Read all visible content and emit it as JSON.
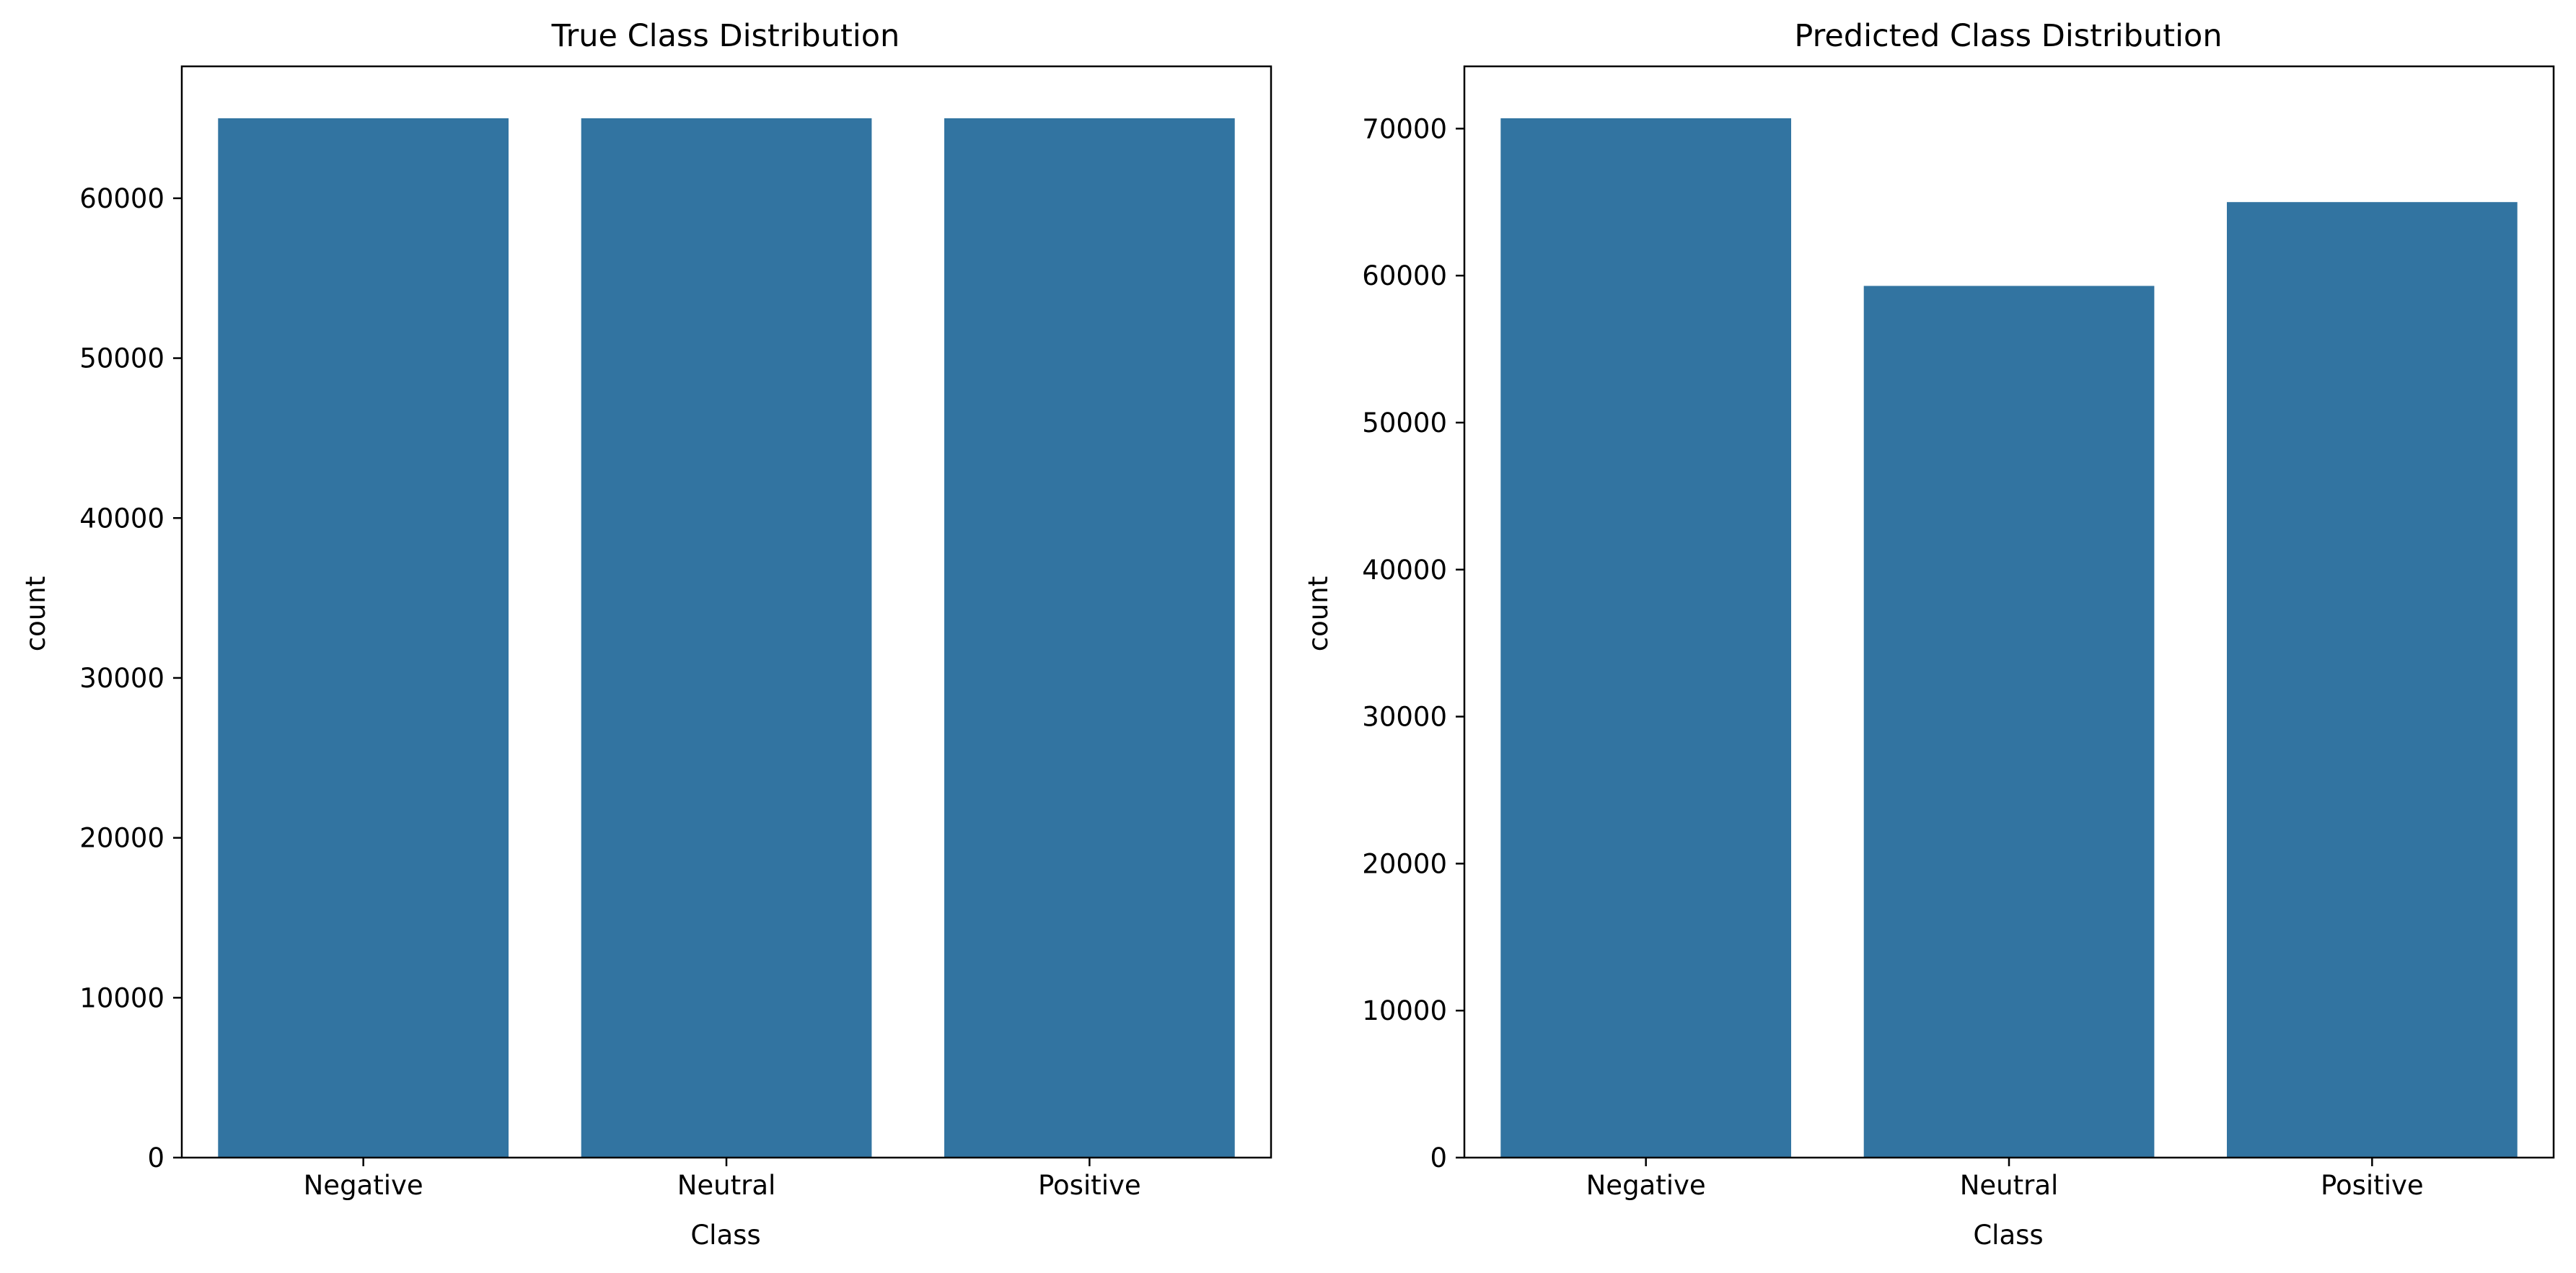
{
  "chart_data": [
    {
      "type": "bar",
      "title": "True Class Distribution",
      "xlabel": "Class",
      "ylabel": "count",
      "categories": [
        "Negative",
        "Neutral",
        "Positive"
      ],
      "values": [
        65000,
        65000,
        65000
      ],
      "ylim": [
        0,
        68250
      ],
      "yticks": [
        0,
        10000,
        20000,
        30000,
        40000,
        50000,
        60000
      ],
      "ytick_labels": [
        "0",
        "10000",
        "20000",
        "30000",
        "40000",
        "50000",
        "60000"
      ],
      "bar_color": "#3274a1",
      "grid": false,
      "legend": "none"
    },
    {
      "type": "bar",
      "title": "Predicted Class Distribution",
      "xlabel": "Class",
      "ylabel": "count",
      "categories": [
        "Negative",
        "Neutral",
        "Positive"
      ],
      "values": [
        70700,
        59300,
        65000
      ],
      "ylim": [
        0,
        74235
      ],
      "yticks": [
        0,
        10000,
        20000,
        30000,
        40000,
        50000,
        60000,
        70000
      ],
      "ytick_labels": [
        "0",
        "10000",
        "20000",
        "30000",
        "40000",
        "50000",
        "60000",
        "70000"
      ],
      "bar_color": "#3274a1",
      "grid": false,
      "legend": "none"
    }
  ]
}
